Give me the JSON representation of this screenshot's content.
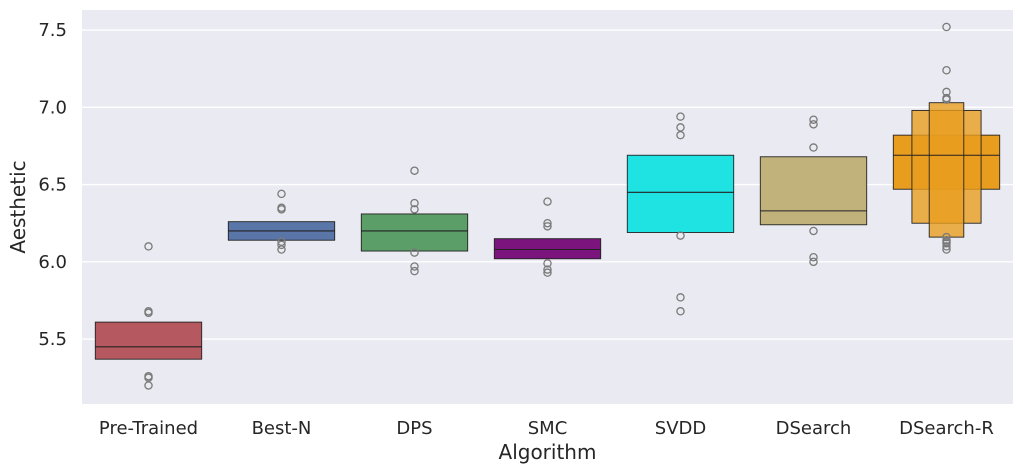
{
  "chart_data": {
    "type": "boxen",
    "title": "",
    "xlabel": "Algorithm",
    "ylabel": "Aesthetic",
    "ylim": [
      5.08,
      7.63
    ],
    "yticks": [
      5.5,
      6.0,
      6.5,
      7.0,
      7.5
    ],
    "ytick_labels": [
      "5.5",
      "6.0",
      "6.5",
      "7.0",
      "7.5"
    ],
    "grid": true,
    "categories": [
      "Pre-Trained",
      "Best-N",
      "DPS",
      "SMC",
      "SVDD",
      "DSearch",
      "DSearch-R"
    ],
    "groups": [
      {
        "name": "Pre-Trained",
        "color": "#b5585f",
        "median": 5.45,
        "levels": [
          [
            5.37,
            5.61
          ]
        ],
        "outliers": [
          6.1,
          5.68,
          5.67,
          5.26,
          5.25,
          5.2
        ]
      },
      {
        "name": "Best-N",
        "color": "#5a75a8",
        "median": 6.2,
        "levels": [
          [
            6.14,
            6.26
          ]
        ],
        "outliers": [
          6.44,
          6.35,
          6.34,
          6.13,
          6.11,
          6.08
        ]
      },
      {
        "name": "DPS",
        "color": "#5b9e68",
        "median": 6.2,
        "levels": [
          [
            6.07,
            6.31
          ]
        ],
        "outliers": [
          6.59,
          6.38,
          6.34,
          6.06,
          5.97,
          5.94
        ]
      },
      {
        "name": "SMC",
        "color": "#7b147d",
        "median": 6.08,
        "levels": [
          [
            6.02,
            6.15
          ]
        ],
        "outliers": [
          6.39,
          6.25,
          6.23,
          5.99,
          5.95,
          5.93
        ]
      },
      {
        "name": "SVDD",
        "color": "#1fe3e3",
        "median": 6.45,
        "levels": [
          [
            6.19,
            6.69
          ]
        ],
        "outliers": [
          6.94,
          6.87,
          6.82,
          6.17,
          5.77,
          5.68
        ]
      },
      {
        "name": "DSearch",
        "color": "#c1b27c",
        "median": 6.33,
        "levels": [
          [
            6.24,
            6.68
          ]
        ],
        "outliers": [
          6.92,
          6.89,
          6.74,
          6.2,
          6.03,
          6.0
        ]
      },
      {
        "name": "DSearch-R",
        "color": "#e89d1f",
        "median": 6.69,
        "levels": [
          [
            6.47,
            6.82
          ],
          [
            6.25,
            6.98
          ],
          [
            6.16,
            7.03
          ]
        ],
        "outliers": [
          7.52,
          7.24,
          7.1,
          7.06,
          7.05,
          6.16,
          6.14,
          6.13,
          6.12,
          6.1,
          6.08
        ]
      }
    ]
  }
}
